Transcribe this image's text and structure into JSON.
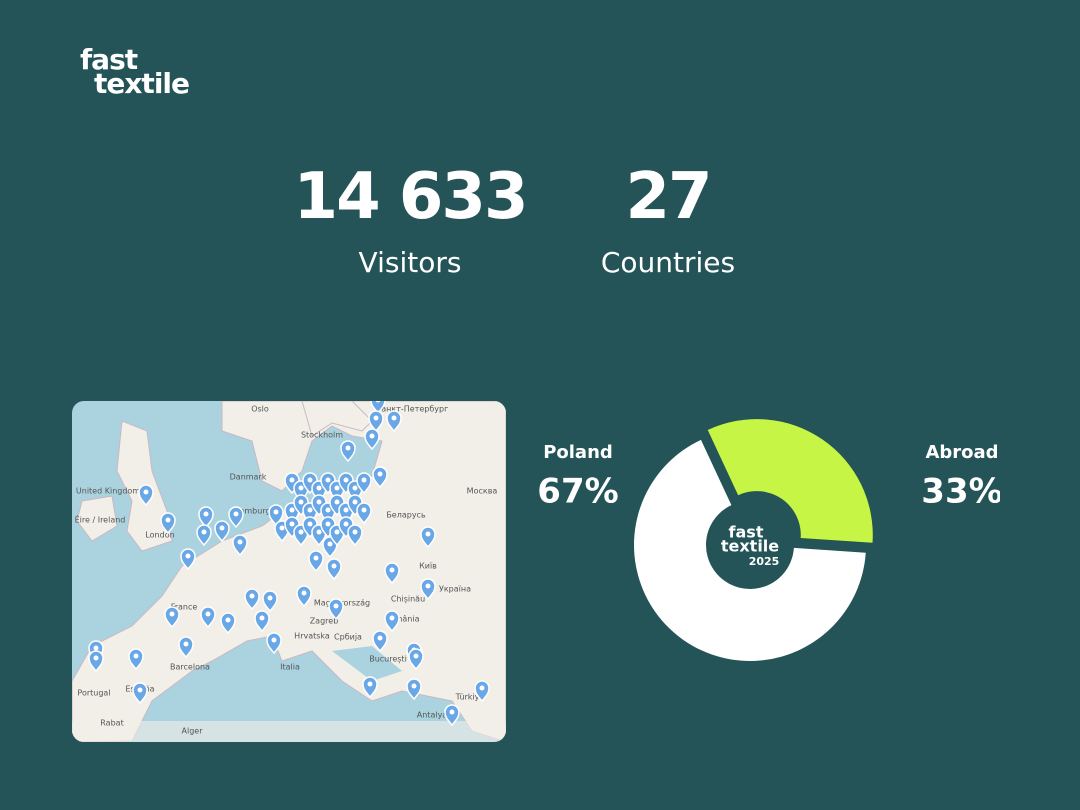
{
  "logo": {
    "line1": "fast",
    "line2": "textile"
  },
  "stats": [
    {
      "value": "14 633",
      "label": "Visitors"
    },
    {
      "value": "27",
      "label": "Countries"
    }
  ],
  "map": {
    "labels": [
      "Oslo",
      "Stockholm",
      "Санкт-Петербург",
      "United Kingdom",
      "Danmark",
      "Москва",
      "Éire / Ireland",
      "London",
      "Hamburg",
      "Беларусь",
      "Київ",
      "France",
      "Magyarország",
      "Україна",
      "Chișinău",
      "România",
      "Hrvatska",
      "Србија",
      "Zagreb",
      "Italia",
      "Barcelona",
      "España",
      "Portugal",
      "București",
      "Türkiye",
      "Antalya",
      "Rabat",
      "Alger"
    ]
  },
  "chart_data": {
    "type": "donut",
    "categories": [
      "Poland",
      "Abroad"
    ],
    "values": [
      67,
      33
    ],
    "value_labels": [
      "67%",
      "33%"
    ],
    "colors": [
      "#ffffff",
      "#c6f545"
    ],
    "center": {
      "line1": "fast",
      "line2": "textile",
      "line3": "2025"
    }
  }
}
